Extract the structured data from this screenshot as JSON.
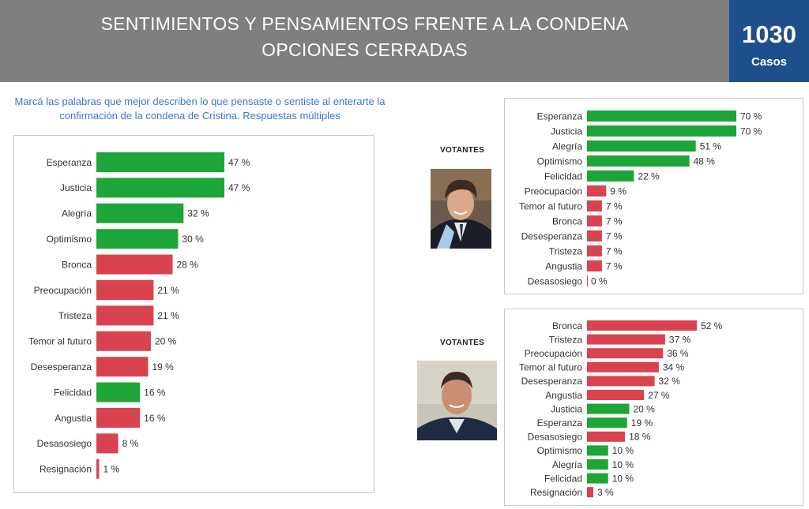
{
  "header": {
    "title_line1": "SENTIMIENTOS Y PENSAMIENTOS FRENTE A LA CONDENA",
    "title_line2": "OPCIONES CERRADAS",
    "cases_number": "1030",
    "cases_label": "Casos"
  },
  "question": "Marcá las palabras que mejor describen lo que pensaste o sentiste al enterarte la confirmación de la condena de Cristina. Respuestas múltiples",
  "panels": {
    "top_label": "VOTANTES",
    "bottom_label": "VOTANTES"
  },
  "colors": {
    "positive": "#1ea538",
    "negative": "#d9434f",
    "header": "#7f7f7f",
    "cases": "#1f4e8c"
  },
  "chart_data": [
    {
      "type": "bar",
      "orientation": "horizontal",
      "value_suffix": " %",
      "categories": [
        "Esperanza",
        "Justicia",
        "Alegría",
        "Optimismo",
        "Bronca",
        "Preocupación",
        "Tristeza",
        "Temor al futuro",
        "Desesperanza",
        "Felicidad",
        "Angustia",
        "Desasosiego",
        "Resignación"
      ],
      "values": [
        47,
        47,
        32,
        30,
        28,
        21,
        21,
        20,
        19,
        16,
        16,
        8,
        1
      ],
      "sentiment": [
        "positive",
        "positive",
        "positive",
        "positive",
        "negative",
        "negative",
        "negative",
        "negative",
        "negative",
        "positive",
        "negative",
        "negative",
        "negative"
      ]
    },
    {
      "type": "bar",
      "orientation": "horizontal",
      "value_suffix": " %",
      "categories": [
        "Esperanza",
        "Justicia",
        "Alegría",
        "Optimismo",
        "Felicidad",
        "Preocupación",
        "Temor al futuro",
        "Bronca",
        "Desesperanza",
        "Tristeza",
        "Angustia",
        "Desasosiego"
      ],
      "values": [
        70,
        70,
        51,
        48,
        22,
        9,
        7,
        7,
        7,
        7,
        7,
        0
      ],
      "sentiment": [
        "positive",
        "positive",
        "positive",
        "positive",
        "positive",
        "negative",
        "negative",
        "negative",
        "negative",
        "negative",
        "negative",
        "negative"
      ]
    },
    {
      "type": "bar",
      "orientation": "horizontal",
      "value_suffix": " %",
      "categories": [
        "Bronca",
        "Tristeza",
        "Preocupación",
        "Temor al futuro",
        "Desesperanza",
        "Angustia",
        "Justicia",
        "Esperanza",
        "Desasosiego",
        "Optimismo",
        "Alegría",
        "Felicidad",
        "Resignación"
      ],
      "values": [
        52,
        37,
        36,
        34,
        32,
        27,
        20,
        19,
        18,
        10,
        10,
        10,
        3
      ],
      "sentiment": [
        "negative",
        "negative",
        "negative",
        "negative",
        "negative",
        "negative",
        "positive",
        "positive",
        "negative",
        "positive",
        "positive",
        "positive",
        "negative"
      ]
    }
  ]
}
